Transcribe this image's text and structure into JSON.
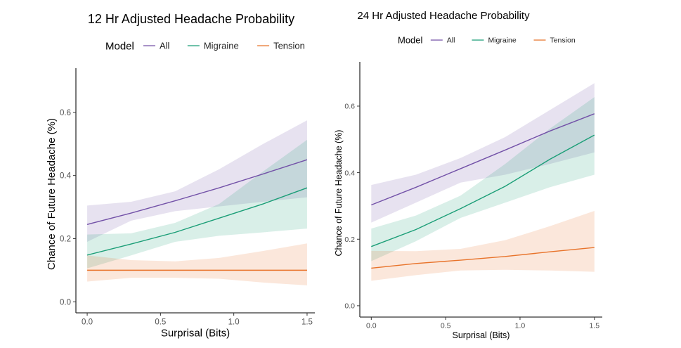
{
  "chart_data": [
    {
      "type": "line",
      "title": "12 Hr Adjusted Headache Probability",
      "xlabel": "Surprisal (Bits)",
      "ylabel": "Chance of Future Headache (%)",
      "legend_title": "Model",
      "legend_position": "top",
      "grid": false,
      "xlim": [
        -0.077,
        1.553
      ],
      "ylim": [
        -0.035,
        0.74
      ],
      "xticks": [
        "0.0",
        "0.5",
        "1.0",
        "1.5"
      ],
      "yticks": [
        "0.0",
        "0.2",
        "0.4",
        "0.6"
      ],
      "x": [
        0,
        0.3,
        0.6,
        0.9,
        1.2,
        1.5
      ],
      "series": [
        {
          "name": "All",
          "color": "#7352a8",
          "values": [
            0.245,
            0.281,
            0.32,
            0.361,
            0.405,
            0.45
          ],
          "upper": [
            0.305,
            0.317,
            0.35,
            0.42,
            0.5,
            0.575
          ],
          "lower": [
            0.19,
            0.257,
            0.287,
            0.302,
            0.317,
            0.331
          ]
        },
        {
          "name": "Migraine",
          "color": "#1b9e77",
          "values": [
            0.148,
            0.183,
            0.22,
            0.265,
            0.31,
            0.361
          ],
          "upper": [
            0.213,
            0.217,
            0.25,
            0.31,
            0.413,
            0.513
          ],
          "lower": [
            0.106,
            0.147,
            0.19,
            0.209,
            0.22,
            0.232
          ]
        },
        {
          "name": "Tension",
          "color": "#e8732a",
          "values": [
            0.1,
            0.1,
            0.1,
            0.1,
            0.1,
            0.1
          ],
          "upper": [
            0.147,
            0.132,
            0.128,
            0.139,
            0.161,
            0.185
          ],
          "lower": [
            0.064,
            0.076,
            0.076,
            0.073,
            0.061,
            0.052
          ]
        }
      ]
    },
    {
      "type": "line",
      "title": "24 Hr Adjusted Headache Probability",
      "xlabel": "Surprisal (Bits)",
      "ylabel": "Chance of Future Headache (%)",
      "legend_title": "Model",
      "legend_position": "top",
      "grid": false,
      "xlim": [
        -0.077,
        1.553
      ],
      "ylim": [
        -0.034,
        0.733
      ],
      "xticks": [
        "0.0",
        "0.5",
        "1.0",
        "1.5"
      ],
      "yticks": [
        "0.0",
        "0.2",
        "0.4",
        "0.6"
      ],
      "x": [
        0,
        0.3,
        0.6,
        0.9,
        1.2,
        1.5
      ],
      "series": [
        {
          "name": "All",
          "color": "#7352a8",
          "values": [
            0.303,
            0.356,
            0.412,
            0.468,
            0.525,
            0.577
          ],
          "upper": [
            0.363,
            0.394,
            0.444,
            0.507,
            0.588,
            0.669
          ],
          "lower": [
            0.25,
            0.31,
            0.37,
            0.394,
            0.426,
            0.461
          ]
        },
        {
          "name": "Migraine",
          "color": "#1b9e77",
          "values": [
            0.178,
            0.229,
            0.292,
            0.359,
            0.44,
            0.513
          ],
          "upper": [
            0.232,
            0.271,
            0.331,
            0.426,
            0.532,
            0.627
          ],
          "lower": [
            0.134,
            0.194,
            0.264,
            0.31,
            0.356,
            0.394
          ]
        },
        {
          "name": "Tension",
          "color": "#e8732a",
          "values": [
            0.113,
            0.127,
            0.137,
            0.148,
            0.162,
            0.175
          ],
          "upper": [
            0.165,
            0.164,
            0.171,
            0.197,
            0.239,
            0.285
          ],
          "lower": [
            0.075,
            0.092,
            0.106,
            0.108,
            0.106,
            0.102
          ]
        }
      ]
    }
  ]
}
